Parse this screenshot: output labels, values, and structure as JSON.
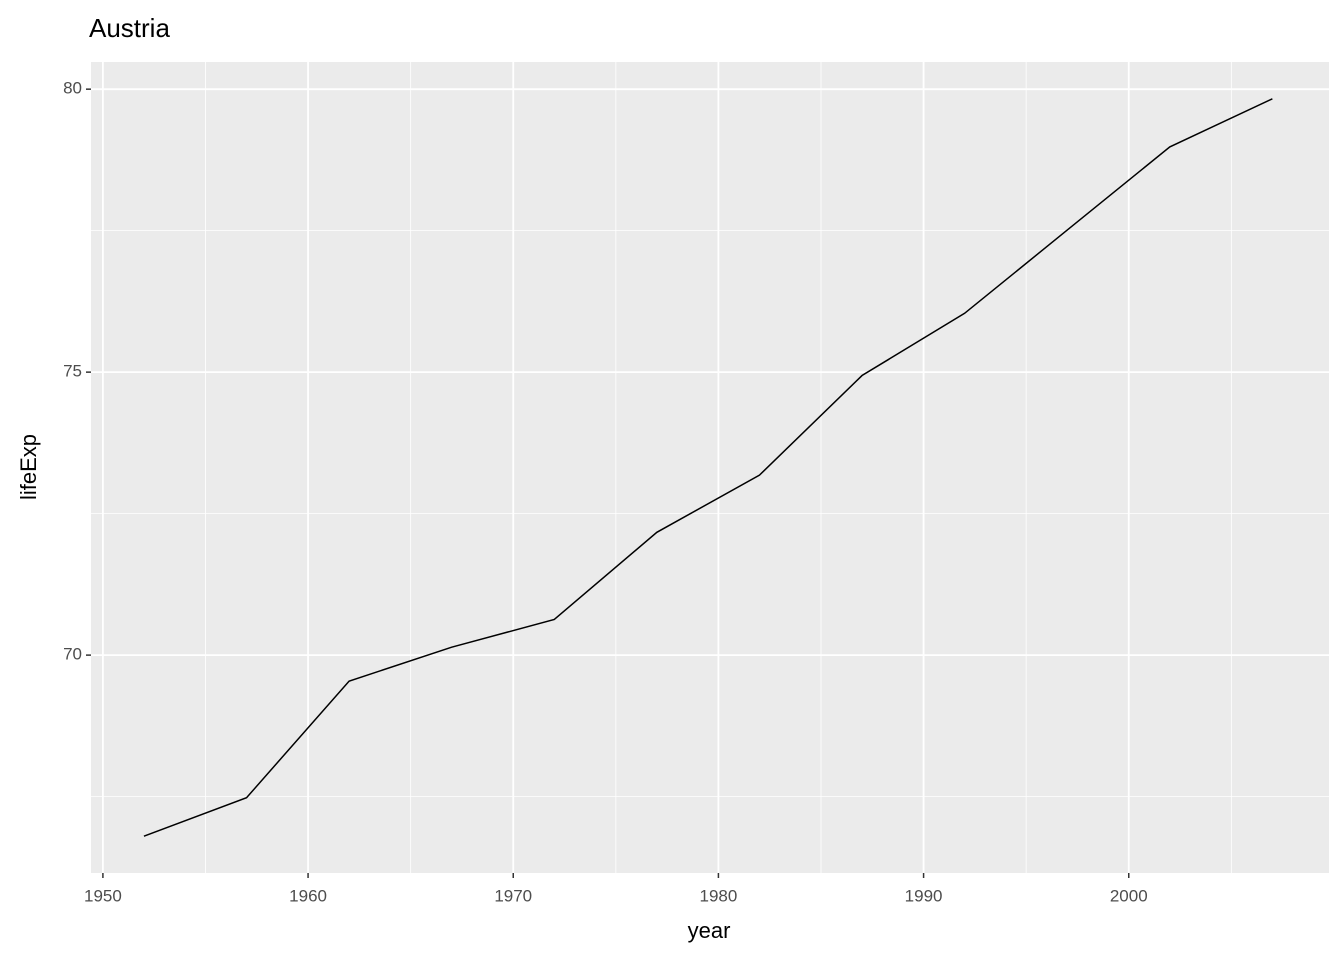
{
  "chart_data": {
    "type": "line",
    "title": "Austria",
    "x_label": "year",
    "y_label": "lifeExp",
    "x": [
      1952,
      1957,
      1962,
      1967,
      1972,
      1977,
      1982,
      1987,
      1992,
      1997,
      2002,
      2007
    ],
    "series": [
      {
        "color": "#000000",
        "values": [
          66.8,
          67.48,
          69.54,
          70.14,
          70.63,
          72.17,
          73.18,
          74.94,
          76.04,
          77.51,
          78.98,
          79.83
        ]
      }
    ],
    "xlim": [
      1949.42,
      2009.76
    ],
    "ylim": [
      66.15,
      80.48
    ],
    "xticks": [
      1950,
      1960,
      1970,
      1980,
      1990,
      2000
    ],
    "yticks": [
      70,
      75,
      80
    ],
    "x_minor_grid": [
      1955,
      1965,
      1975,
      1985,
      1995,
      2005
    ],
    "y_minor_grid": [
      67.5,
      72.5,
      77.5
    ],
    "grid": true,
    "panel_color": "#ebebeb"
  }
}
